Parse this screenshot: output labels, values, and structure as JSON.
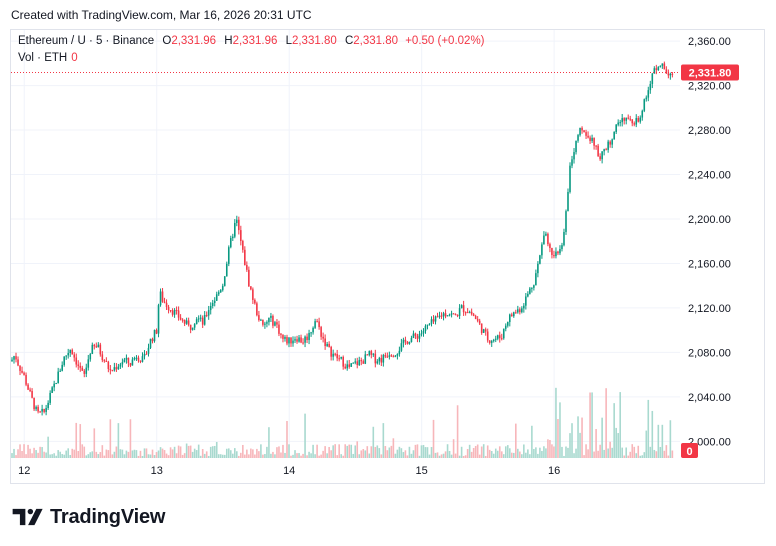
{
  "header": {
    "created_text": "Created with TradingView.com, Mar 16, 2026 20:31 UTC"
  },
  "legend": {
    "symbol": "Ethereum / U · 5 · Binance",
    "open_label": "O",
    "open": "2,331.96",
    "high_label": "H",
    "high": "2,331.96",
    "low_label": "L",
    "low": "2,331.80",
    "close_label": "C",
    "close": "2,331.80",
    "change": "+0.50 (+0.02%)",
    "vol_label": "Vol · ETH",
    "vol_value": "0"
  },
  "brand": {
    "name": "TradingView"
  },
  "colors": {
    "up": "#089981",
    "down": "#f23645",
    "up_vol": "#a8d9cf",
    "down_vol": "#f7b6ba",
    "grid": "#f0f3fa"
  },
  "chart_data": {
    "type": "candlestick",
    "symbol": "Ethereum / U",
    "interval": "5",
    "exchange": "Binance",
    "ylim": [
      1985,
      2370
    ],
    "y_ticks": [
      2000,
      2040,
      2080,
      2120,
      2160,
      2200,
      2240,
      2280,
      2320,
      2360
    ],
    "y_tick_labels": [
      "2,000.00",
      "2,040.00",
      "2,080.00",
      "2,120.00",
      "2,160.00",
      "2,200.00",
      "2,240.00",
      "2,280.00",
      "2,320.00",
      "2,360.00"
    ],
    "x_ticks": [
      12,
      13,
      14,
      15,
      16
    ],
    "x_tick_labels": [
      "12",
      "13",
      "14",
      "15",
      "16"
    ],
    "x_range": [
      11.9,
      16.95
    ],
    "last_price": 2331.8,
    "last_price_label": "2,331.80",
    "volume_last_label": "0",
    "price_path": [
      [
        11.9,
        2072
      ],
      [
        11.93,
        2078
      ],
      [
        11.96,
        2068
      ],
      [
        12.0,
        2058
      ],
      [
        12.05,
        2040
      ],
      [
        12.1,
        2024
      ],
      [
        12.15,
        2026
      ],
      [
        12.2,
        2042
      ],
      [
        12.25,
        2058
      ],
      [
        12.3,
        2075
      ],
      [
        12.35,
        2084
      ],
      [
        12.4,
        2070
      ],
      [
        12.45,
        2058
      ],
      [
        12.5,
        2082
      ],
      [
        12.55,
        2086
      ],
      [
        12.6,
        2074
      ],
      [
        12.65,
        2063
      ],
      [
        12.7,
        2068
      ],
      [
        12.75,
        2073
      ],
      [
        12.8,
        2070
      ],
      [
        12.85,
        2078
      ],
      [
        12.9,
        2072
      ],
      [
        12.95,
        2090
      ],
      [
        13.0,
        2100
      ],
      [
        13.02,
        2134
      ],
      [
        13.05,
        2126
      ],
      [
        13.1,
        2120
      ],
      [
        13.15,
        2114
      ],
      [
        13.2,
        2108
      ],
      [
        13.25,
        2102
      ],
      [
        13.3,
        2112
      ],
      [
        13.35,
        2106
      ],
      [
        13.4,
        2122
      ],
      [
        13.45,
        2130
      ],
      [
        13.5,
        2142
      ],
      [
        13.55,
        2175
      ],
      [
        13.6,
        2200
      ],
      [
        13.65,
        2170
      ],
      [
        13.7,
        2140
      ],
      [
        13.75,
        2118
      ],
      [
        13.8,
        2102
      ],
      [
        13.85,
        2110
      ],
      [
        13.9,
        2106
      ],
      [
        13.95,
        2092
      ],
      [
        14.0,
        2090
      ],
      [
        14.05,
        2094
      ],
      [
        14.1,
        2090
      ],
      [
        14.15,
        2096
      ],
      [
        14.2,
        2110
      ],
      [
        14.25,
        2094
      ],
      [
        14.3,
        2082
      ],
      [
        14.35,
        2076
      ],
      [
        14.4,
        2072
      ],
      [
        14.45,
        2066
      ],
      [
        14.5,
        2070
      ],
      [
        14.55,
        2072
      ],
      [
        14.6,
        2078
      ],
      [
        14.65,
        2074
      ],
      [
        14.7,
        2074
      ],
      [
        14.75,
        2080
      ],
      [
        14.8,
        2080
      ],
      [
        14.85,
        2086
      ],
      [
        14.9,
        2092
      ],
      [
        14.95,
        2094
      ],
      [
        15.0,
        2098
      ],
      [
        15.05,
        2104
      ],
      [
        15.1,
        2108
      ],
      [
        15.15,
        2114
      ],
      [
        15.2,
        2116
      ],
      [
        15.25,
        2112
      ],
      [
        15.3,
        2120
      ],
      [
        15.35,
        2118
      ],
      [
        15.4,
        2112
      ],
      [
        15.45,
        2102
      ],
      [
        15.5,
        2092
      ],
      [
        15.55,
        2092
      ],
      [
        15.6,
        2094
      ],
      [
        15.65,
        2110
      ],
      [
        15.7,
        2116
      ],
      [
        15.75,
        2120
      ],
      [
        15.8,
        2132
      ],
      [
        15.85,
        2145
      ],
      [
        15.9,
        2170
      ],
      [
        15.93,
        2195
      ],
      [
        15.96,
        2172
      ],
      [
        16.0,
        2170
      ],
      [
        16.05,
        2170
      ],
      [
        16.08,
        2190
      ],
      [
        16.12,
        2250
      ],
      [
        16.16,
        2268
      ],
      [
        16.2,
        2280
      ],
      [
        16.25,
        2275
      ],
      [
        16.3,
        2268
      ],
      [
        16.35,
        2255
      ],
      [
        16.4,
        2265
      ],
      [
        16.45,
        2278
      ],
      [
        16.5,
        2288
      ],
      [
        16.55,
        2295
      ],
      [
        16.6,
        2282
      ],
      [
        16.65,
        2295
      ],
      [
        16.7,
        2310
      ],
      [
        16.75,
        2335
      ],
      [
        16.8,
        2342
      ],
      [
        16.85,
        2333
      ],
      [
        16.9,
        2332
      ]
    ]
  }
}
